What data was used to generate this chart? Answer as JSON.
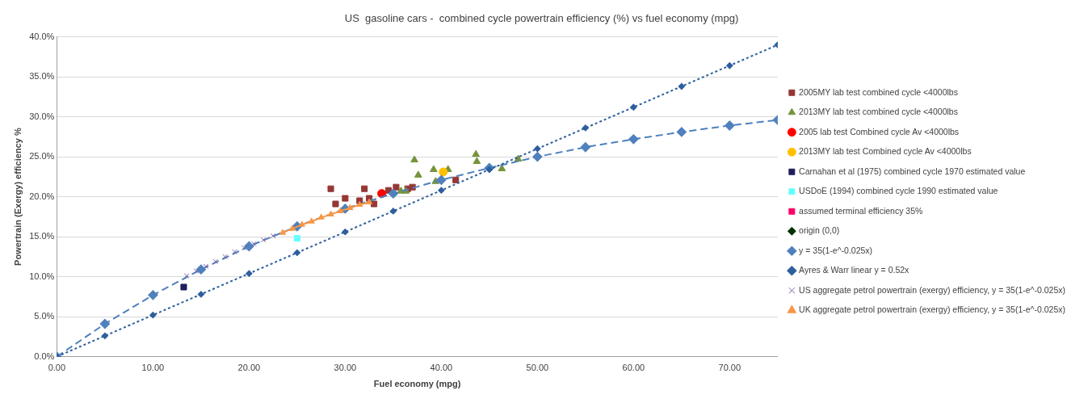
{
  "chart_data": {
    "type": "scatter",
    "title": "US  gasoline cars -  combined cycle powertrain efficiency (%) vs fuel economy (mpg)",
    "xlabel": "Fuel economy (mpg)",
    "ylabel": "Powertrain (Exergy) efficiency %",
    "xlim": [
      0,
      75
    ],
    "ylim": [
      0,
      40
    ],
    "xticks": [
      {
        "value": 0,
        "label": "0.00"
      },
      {
        "value": 10,
        "label": "10.00"
      },
      {
        "value": 20,
        "label": "20.00"
      },
      {
        "value": 30,
        "label": "30.00"
      },
      {
        "value": 40,
        "label": "40.00"
      },
      {
        "value": 50,
        "label": "50.00"
      },
      {
        "value": 60,
        "label": "60.00"
      },
      {
        "value": 70,
        "label": "70.00"
      }
    ],
    "yticks": [
      {
        "value": 0,
        "label": "0.0%"
      },
      {
        "value": 5,
        "label": "5.0%"
      },
      {
        "value": 10,
        "label": "10.0%"
      },
      {
        "value": 15,
        "label": "15.0%"
      },
      {
        "value": 20,
        "label": "20.0%"
      },
      {
        "value": 25,
        "label": "25.0%"
      },
      {
        "value": 30,
        "label": "30.0%"
      },
      {
        "value": 35,
        "label": "35.0%"
      },
      {
        "value": 40,
        "label": "40.0%"
      }
    ],
    "grid": "y",
    "legend": "right",
    "series": [
      {
        "name": "2005MY lab test combined cycle <4000lbs",
        "color": "#953735",
        "type": "scatter",
        "marker": "square",
        "x": [
          28.5,
          32.0,
          29.0,
          30.0,
          31.5,
          32.5,
          33.0,
          34.5,
          35.3,
          36.5,
          37.0,
          41.5
        ],
        "values": [
          21.0,
          21.0,
          19.1,
          19.8,
          19.5,
          19.8,
          19.1,
          20.8,
          21.2,
          21.0,
          21.2,
          22.1
        ]
      },
      {
        "name": "2013MY lab test combined cycle <4000lbs",
        "color": "#77933c",
        "type": "scatter",
        "marker": "triangle",
        "x": [
          37.2,
          37.6,
          39.2,
          40.7,
          39.4,
          43.6,
          43.7,
          46.3,
          35.8,
          36.3,
          48.0
        ],
        "values": [
          24.6,
          22.7,
          23.4,
          23.4,
          21.9,
          25.3,
          24.4,
          23.5,
          20.7,
          20.7,
          24.7
        ]
      },
      {
        "name": "2005 lab test Combined cycle Av <4000lbs",
        "color": "#ff0000",
        "type": "scatter",
        "marker": "circle",
        "x": [
          33.8
        ],
        "values": [
          20.4
        ]
      },
      {
        "name": "2013MY lab test Combined cycle Av <4000lbs",
        "color": "#ffc000",
        "type": "scatter",
        "marker": "circle",
        "x": [
          40.2
        ],
        "values": [
          23.1
        ]
      },
      {
        "name": "Carnahan et al (1975) combined cycle 1970 estimated value",
        "color": "#1f1f5f",
        "type": "scatter",
        "marker": "square",
        "x": [
          13.2
        ],
        "values": [
          8.7
        ]
      },
      {
        "name": "USDoE (1994) combined cycle 1990 estimated value",
        "color": "#66ffff",
        "type": "scatter",
        "marker": "square",
        "x": [
          25.0
        ],
        "values": [
          14.8
        ]
      },
      {
        "name": "assumed terminal efficiency 35%",
        "color": "#ff0066",
        "type": "scatter",
        "marker": "square"
      },
      {
        "name": "origin (0,0)",
        "color": "#003300",
        "type": "scatter",
        "marker": "diamond",
        "x": [
          0
        ],
        "values": [
          0
        ]
      },
      {
        "name": "y = 35(1-e^-0.025x)",
        "color": "#4f81bd",
        "type": "line",
        "marker": "diamond",
        "line_style": "dashed",
        "x": [
          0,
          5,
          10,
          15,
          20,
          25,
          30,
          35,
          40,
          45,
          50,
          55,
          60,
          65,
          70,
          75
        ],
        "values": [
          0,
          4.1,
          7.7,
          10.9,
          13.8,
          16.3,
          18.5,
          20.4,
          22.1,
          23.6,
          25.0,
          26.2,
          27.2,
          28.1,
          28.9,
          29.6
        ]
      },
      {
        "name": "Ayres & Warr linear y = 0.52x",
        "color": "#2e5f9e",
        "type": "line",
        "marker": "diamond",
        "line_style": "dotted",
        "x": [
          0,
          5,
          10,
          15,
          20,
          25,
          30,
          35,
          40,
          45,
          50,
          55,
          60,
          65,
          70,
          75
        ],
        "values": [
          0,
          2.6,
          5.2,
          7.8,
          10.4,
          13.0,
          15.6,
          18.2,
          20.8,
          23.4,
          26.0,
          28.6,
          31.2,
          33.8,
          36.4,
          39.0
        ]
      },
      {
        "name": "US aggregate petrol powertrain (exergy) efficiency, y = 35(1-e^-0.025x)",
        "color": "#8064a2",
        "type": "scatter",
        "marker": "cross",
        "x": [
          13.5,
          14.5,
          15.5,
          16.5,
          17.5,
          18.5,
          19.5,
          20.5,
          21.5,
          22.5
        ],
        "values": [
          10.1,
          10.7,
          11.3,
          11.9,
          12.5,
          13.1,
          13.6,
          14.1,
          14.6,
          15.1
        ]
      },
      {
        "name": "UK aggregate petrol powertrain (exergy) efficiency, y = 35(1-e^-0.025x)",
        "color": "#f79646",
        "type": "line",
        "marker": "triangle",
        "line_style": "solid",
        "x": [
          23.5,
          24.5,
          25.5,
          26.5,
          27.5,
          28.5,
          29.5,
          30.5,
          31.5,
          32.5
        ],
        "values": [
          15.5,
          16.0,
          16.5,
          16.9,
          17.4,
          17.8,
          18.2,
          18.6,
          19.0,
          19.3
        ]
      }
    ]
  }
}
